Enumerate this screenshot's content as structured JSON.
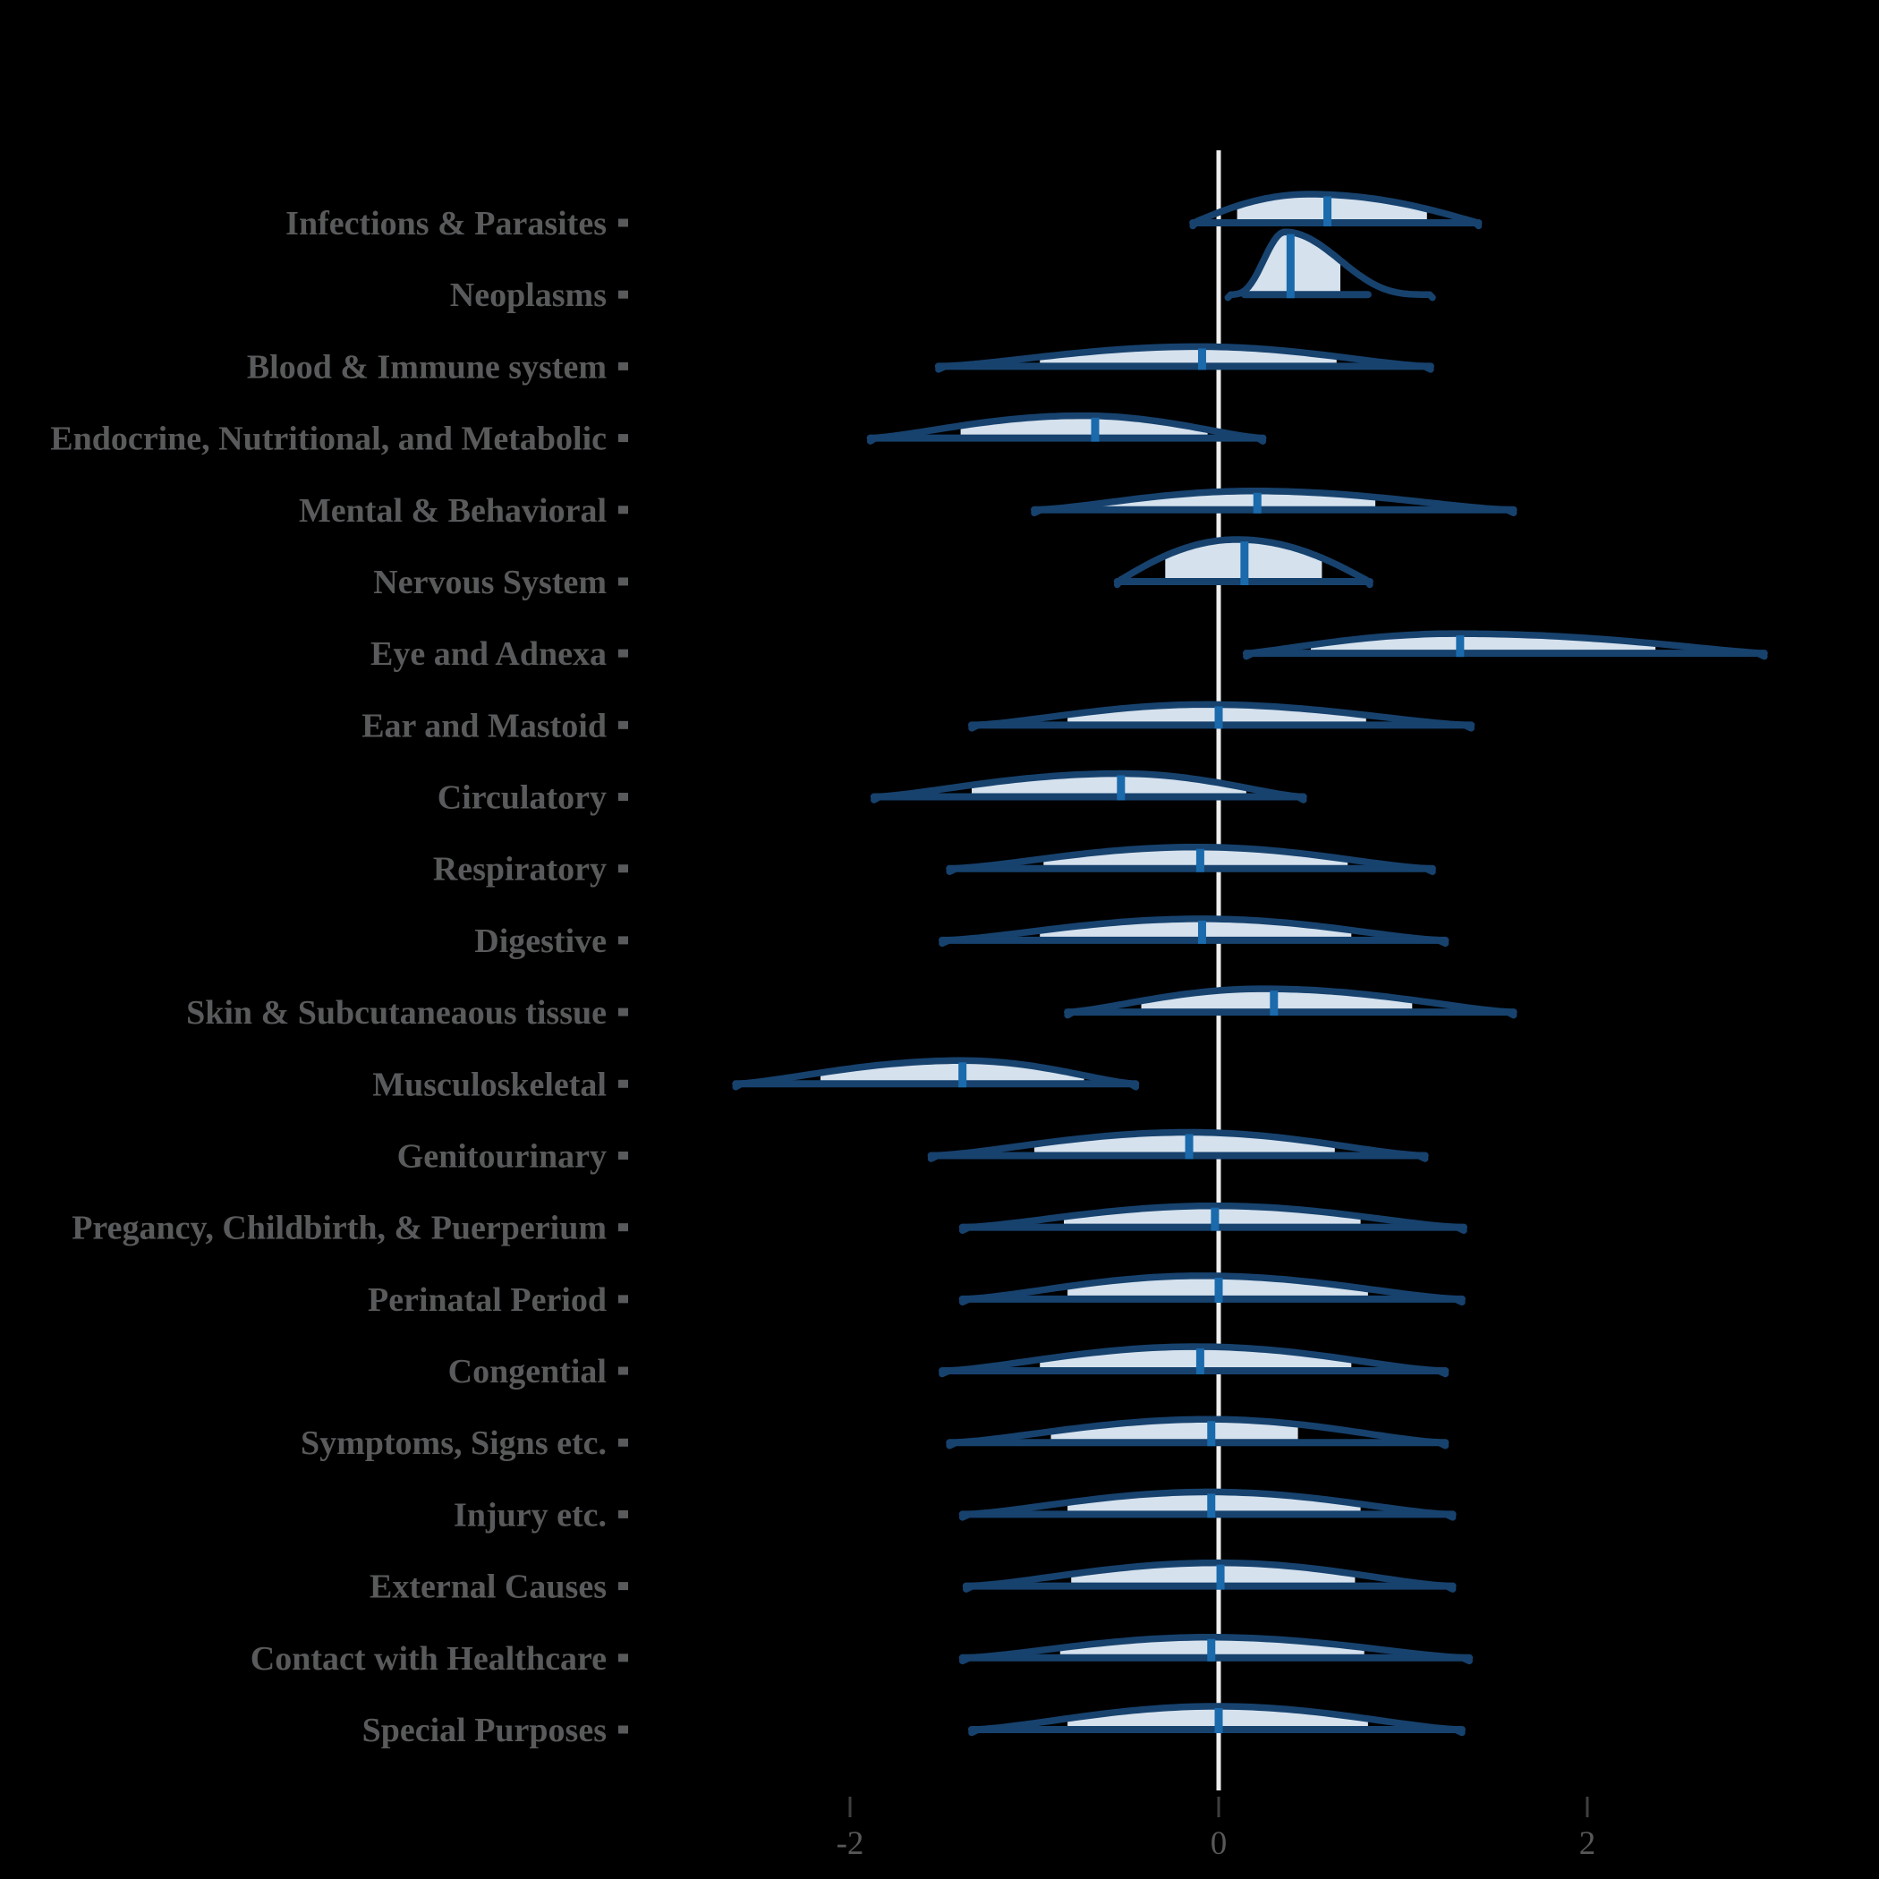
{
  "style": {
    "background": "#000000",
    "density_outline": "#17426E",
    "density_fill": "#D5E1ED",
    "median_line": "#1A6AAC",
    "zero_line": "#EDEDED",
    "label_color": "#595A5C",
    "tick_mark_color": "#3F3F3F",
    "tick_text_color": "#58585A"
  },
  "chart_data": {
    "type": "area",
    "subtype": "ridgeline-half-violin-densities",
    "title": "",
    "xlabel": "",
    "ylabel": "",
    "x_ticks": [
      -2,
      0,
      2
    ],
    "x_tick_labels": [
      "-2",
      "0",
      "2"
    ],
    "xlim": [
      -3.4,
      3.6
    ],
    "reference_line_x": 0,
    "legend": "none",
    "grid": false,
    "categories": [
      "Infections & Parasites",
      "Neoplasms",
      "Blood & Immune system",
      "Endocrine, Nutritional, and Metabolic",
      "Mental & Behavioral",
      "Nervous System",
      "Eye and Adnexa",
      "Ear and Mastoid",
      "Circulatory",
      "Respiratory",
      "Digestive",
      "Skin & Subcutaneaous tissue",
      "Musculoskeletal",
      "Genitourinary",
      "Pregancy, Childbirth, & Puerperium",
      "Perinatal Period",
      "Congential",
      "Symptoms, Signs etc.",
      "Injury etc.",
      "External Causes",
      "Contact with Healthcare",
      "Special Purposes"
    ],
    "rows": [
      {
        "label": "Infections & Parasites",
        "support": [
          -0.14,
          1.41
        ],
        "mode": 0.49,
        "median": 0.59,
        "fill_interval": [
          0.1,
          1.13
        ],
        "peak": 32,
        "shape": 1.1
      },
      {
        "label": "Neoplasms",
        "support": [
          0.14,
          0.81
        ],
        "curve_support": [
          0.05,
          1.16
        ],
        "mode": 0.36,
        "median": 0.39,
        "fill_interval": [
          0.15,
          0.66
        ],
        "peak": 70,
        "shape": 4.0
      },
      {
        "label": "Blood & Immune system",
        "support": [
          -1.52,
          1.15
        ],
        "mode": -0.11,
        "median": -0.09,
        "fill_interval": [
          -0.97,
          0.64
        ],
        "peak": 22,
        "shape": 1.6
      },
      {
        "label": "Endocrine, Nutritional, and Metabolic",
        "support": [
          -1.89,
          0.24
        ],
        "mode": -0.74,
        "median": -0.67,
        "fill_interval": [
          -1.4,
          -0.06
        ],
        "peak": 25,
        "shape": 1.5
      },
      {
        "label": "Mental & Behavioral",
        "support": [
          -1.0,
          1.6
        ],
        "mode": 0.19,
        "median": 0.21,
        "fill_interval": [
          -0.67,
          0.85
        ],
        "peak": 21,
        "shape": 1.6
      },
      {
        "label": "Nervous System",
        "support": [
          -0.55,
          0.82
        ],
        "mode": 0.1,
        "median": 0.14,
        "fill_interval": [
          -0.29,
          0.56
        ],
        "peak": 47,
        "shape": 1.1
      },
      {
        "label": "Eye and Adnexa",
        "support": [
          0.15,
          2.96
        ],
        "mode": 1.29,
        "median": 1.31,
        "fill_interval": [
          0.5,
          2.37
        ],
        "peak": 22,
        "shape": 1.3
      },
      {
        "label": "Ear and Mastoid",
        "support": [
          -1.34,
          1.37
        ],
        "mode": -0.07,
        "median": 0.0,
        "fill_interval": [
          -0.82,
          0.8
        ],
        "peak": 23,
        "shape": 1.6
      },
      {
        "label": "Circulatory",
        "support": [
          -1.87,
          0.46
        ],
        "mode": -0.53,
        "median": -0.53,
        "fill_interval": [
          -1.34,
          0.15
        ],
        "peak": 26,
        "shape": 1.5
      },
      {
        "label": "Respiratory",
        "support": [
          -1.46,
          1.16
        ],
        "mode": -0.12,
        "median": -0.1,
        "fill_interval": [
          -0.95,
          0.7
        ],
        "peak": 24,
        "shape": 1.6
      },
      {
        "label": "Digestive",
        "support": [
          -1.5,
          1.23
        ],
        "mode": -0.09,
        "median": -0.09,
        "fill_interval": [
          -0.97,
          0.72
        ],
        "peak": 24,
        "shape": 1.6
      },
      {
        "label": "Skin & Subcutaneaous tissue",
        "support": [
          -0.82,
          1.6
        ],
        "mode": 0.24,
        "median": 0.3,
        "fill_interval": [
          -0.42,
          1.05
        ],
        "peak": 26,
        "shape": 1.5
      },
      {
        "label": "Musculoskeletal",
        "support": [
          -2.62,
          -0.45
        ],
        "mode": -1.39,
        "median": -1.39,
        "fill_interval": [
          -2.16,
          -0.73
        ],
        "peak": 26,
        "shape": 1.5
      },
      {
        "label": "Genitourinary",
        "support": [
          -1.56,
          1.12
        ],
        "mode": -0.16,
        "median": -0.16,
        "fill_interval": [
          -1.0,
          0.63
        ],
        "peak": 26,
        "shape": 1.6
      },
      {
        "label": "Pregancy, Childbirth, & Puerperium",
        "support": [
          -1.39,
          1.33
        ],
        "mode": -0.02,
        "median": -0.02,
        "fill_interval": [
          -0.84,
          0.77
        ],
        "peak": 24,
        "shape": 1.6
      },
      {
        "label": "Perinatal Period",
        "support": [
          -1.39,
          1.32
        ],
        "mode": -0.09,
        "median": 0.0,
        "fill_interval": [
          -0.82,
          0.81
        ],
        "peak": 26,
        "shape": 1.6
      },
      {
        "label": "Congential",
        "support": [
          -1.5,
          1.23
        ],
        "mode": -0.12,
        "median": -0.1,
        "fill_interval": [
          -0.97,
          0.72
        ],
        "peak": 27,
        "shape": 1.6
      },
      {
        "label": "Symptoms, Signs etc.",
        "support": [
          -1.46,
          1.23
        ],
        "mode": -0.05,
        "median": -0.04,
        "fill_interval": [
          -0.91,
          0.43
        ],
        "peak": 26,
        "shape": 1.6
      },
      {
        "label": "Injury etc.",
        "support": [
          -1.39,
          1.27
        ],
        "mode": -0.05,
        "median": -0.04,
        "fill_interval": [
          -0.82,
          0.77
        ],
        "peak": 25,
        "shape": 1.6
      },
      {
        "label": "External Causes",
        "support": [
          -1.37,
          1.27
        ],
        "mode": 0.0,
        "median": 0.01,
        "fill_interval": [
          -0.8,
          0.74
        ],
        "peak": 26,
        "shape": 1.6
      },
      {
        "label": "Contact with Healthcare",
        "support": [
          -1.39,
          1.36
        ],
        "mode": -0.05,
        "median": -0.04,
        "fill_interval": [
          -0.86,
          0.79
        ],
        "peak": 23,
        "shape": 1.6
      },
      {
        "label": "Special Purposes",
        "support": [
          -1.34,
          1.32
        ],
        "mode": -0.01,
        "median": 0.0,
        "fill_interval": [
          -0.82,
          0.81
        ],
        "peak": 26,
        "shape": 1.6
      }
    ]
  }
}
